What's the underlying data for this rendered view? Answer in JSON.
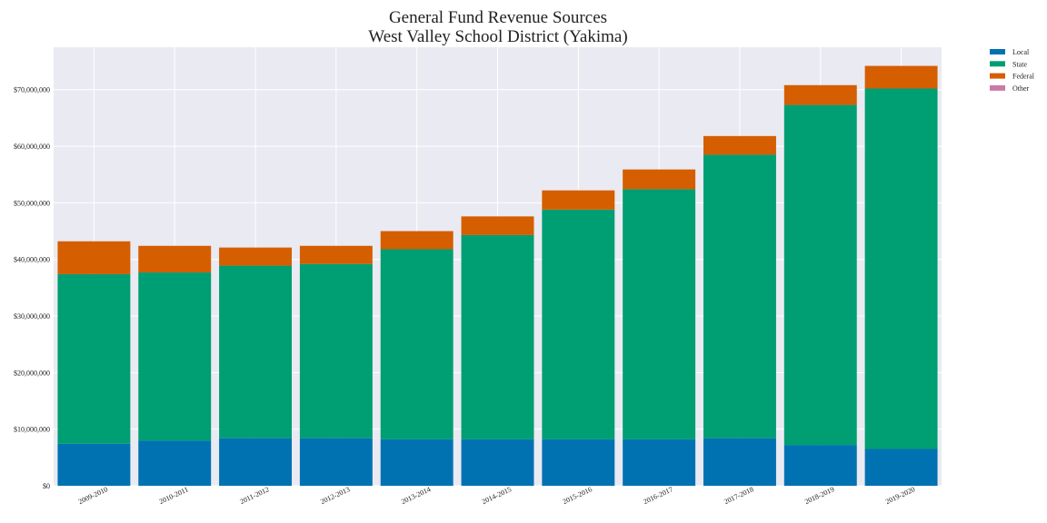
{
  "chart_data": {
    "type": "bar",
    "stacked": true,
    "title": "General Fund Revenue Sources",
    "subtitle": "West Valley School District (Yakima)",
    "xlabel": "",
    "ylabel": "",
    "ylim": [
      0,
      77500000
    ],
    "yticks": [
      0,
      10000000,
      20000000,
      30000000,
      40000000,
      50000000,
      60000000,
      70000000
    ],
    "ytick_labels": [
      "$0",
      "$10,000,000",
      "$20,000,000",
      "$30,000,000",
      "$40,000,000",
      "$50,000,000",
      "$60,000,000",
      "$70,000,000"
    ],
    "grid": true,
    "legend_placement": "outside-top-right",
    "categories": [
      "2009-2010",
      "2010-2011",
      "2011-2012",
      "2012-2013",
      "2013-2014",
      "2014-2015",
      "2015-2016",
      "2016-2017",
      "2017-2018",
      "2018-2019",
      "2019-2020"
    ],
    "series": [
      {
        "name": "Local",
        "color": "#0072b2",
        "values": [
          7400000,
          8000000,
          8400000,
          8400000,
          8200000,
          8200000,
          8200000,
          8200000,
          8400000,
          7200000,
          6500000
        ]
      },
      {
        "name": "State",
        "color": "#009e73",
        "values": [
          30000000,
          29700000,
          30500000,
          30800000,
          33600000,
          36100000,
          40600000,
          44200000,
          50100000,
          60100000,
          63700000
        ]
      },
      {
        "name": "Federal",
        "color": "#d55e00",
        "values": [
          5800000,
          4700000,
          3200000,
          3200000,
          3200000,
          3300000,
          3400000,
          3500000,
          3300000,
          3500000,
          4000000
        ]
      },
      {
        "name": "Other",
        "color": "#cc79a7",
        "values": [
          0,
          0,
          0,
          0,
          0,
          0,
          0,
          0,
          0,
          0,
          0
        ]
      }
    ],
    "colors": {
      "plot_background": "#eaeaf2",
      "grid": "#ffffff"
    }
  }
}
